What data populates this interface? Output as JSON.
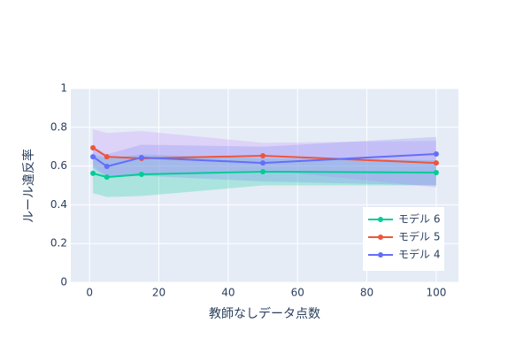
{
  "chart_data": {
    "type": "line",
    "xlabel": "教師なしデータ点数",
    "ylabel": "ルール違反率",
    "x": [
      1,
      5,
      15,
      50,
      100
    ],
    "xlim": [
      -5.4,
      106.4
    ],
    "xticks": [
      0,
      20,
      40,
      60,
      80,
      100
    ],
    "ylim": [
      0,
      1
    ],
    "yticks": [
      0,
      0.2,
      0.4,
      0.6,
      0.8,
      1
    ],
    "grid": true,
    "legend": "lower right",
    "series": [
      {
        "name": "モデル 6",
        "color": "#00cc96",
        "band_color": "rgba(0,204,150,0.25)",
        "values": [
          0.562,
          0.543,
          0.557,
          0.571,
          0.566
        ],
        "upper": [
          0.66,
          0.64,
          0.66,
          0.64,
          0.63
        ],
        "lower": [
          0.46,
          0.44,
          0.445,
          0.5,
          0.5
        ]
      },
      {
        "name": "モデル 5",
        "color": "#EF553B",
        "band_color": "rgba(200,130,250,0.25)",
        "values": [
          0.694,
          0.648,
          0.639,
          0.653,
          0.616
        ],
        "upper": [
          0.79,
          0.77,
          0.78,
          0.72,
          0.73
        ],
        "lower": [
          0.6,
          0.55,
          0.55,
          0.58,
          0.49
        ]
      },
      {
        "name": "モデル 4",
        "color": "#636efa",
        "band_color": "rgba(99,110,250,0.2)",
        "values": [
          0.648,
          0.598,
          0.644,
          0.616,
          0.662
        ],
        "upper": [
          0.7,
          0.66,
          0.71,
          0.7,
          0.75
        ],
        "lower": [
          0.59,
          0.54,
          0.55,
          0.52,
          0.5
        ]
      }
    ]
  }
}
